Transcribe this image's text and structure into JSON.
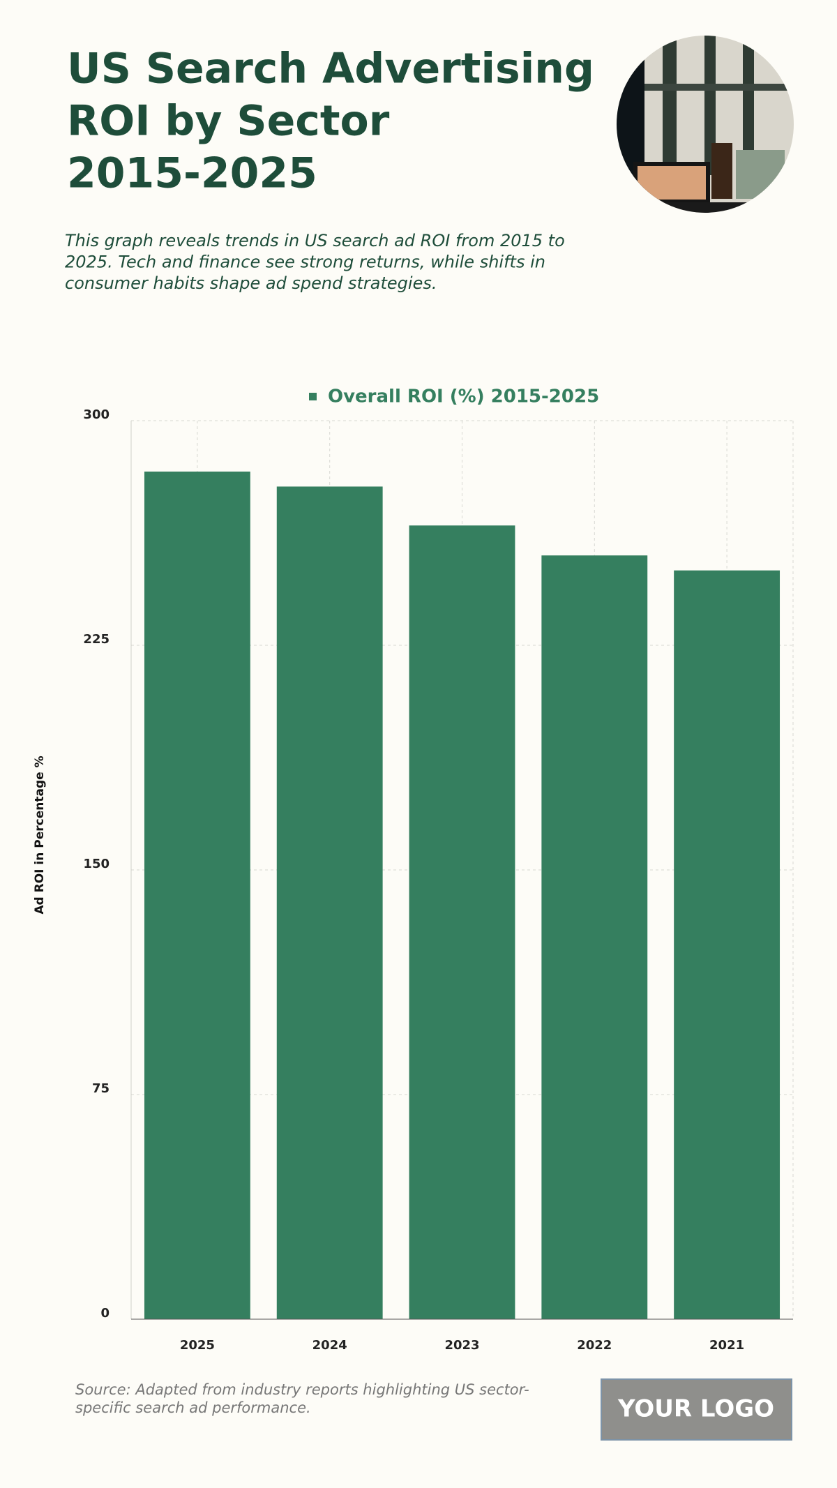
{
  "chart_data": {
    "type": "bar",
    "title": [
      "US Search Advertising",
      "ROI by Sector",
      "2015-2025"
    ],
    "subtitle": [
      "This graph reveals trends in US search ad ROI from 2015 to",
      "2025. Tech and finance see strong returns, while shifts in",
      "consumer habits shape ad spend strategies."
    ],
    "categories": [
      "2025",
      "2024",
      "2023",
      "2022",
      "2021"
    ],
    "series": [
      {
        "name": "Overall ROI (%) 2015-2025",
        "color": "#357f5f",
        "values": [
          283,
          278,
          265,
          255,
          250
        ]
      }
    ],
    "y_label": "Ad ROI in Percentage %",
    "ylim": [
      0,
      300
    ],
    "yticks": [
      0,
      75,
      150,
      225,
      300
    ],
    "grid": true,
    "legend": "top",
    "source": [
      "Source: Adapted from industry reports highlighting US sector-",
      "specific search ad performance."
    ],
    "logo": "YOUR LOGO"
  }
}
